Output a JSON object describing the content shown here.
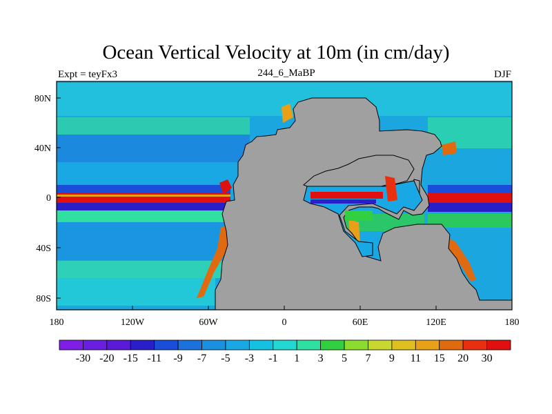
{
  "title": "Ocean Vertical Velocity at 10m (in cm/day)",
  "left_label": "Expt = teyFx3",
  "center_label": "244_6_MaBP",
  "right_label": "DJF",
  "x_ticks": [
    "180",
    "120W",
    "60W",
    "0",
    "60E",
    "120E",
    "180"
  ],
  "y_ticks": [
    "80N",
    "40N",
    "0",
    "40S",
    "80S"
  ],
  "colors": {
    "land": "#a0a0a0",
    "background_ocean": "#1ca6e0"
  },
  "colorbar": {
    "colors": [
      "#7f1fe6",
      "#6a1ee0",
      "#5a1ad8",
      "#2a1ec8",
      "#1a4ed8",
      "#1b72dc",
      "#1a90e0",
      "#1aa8e4",
      "#16c0e0",
      "#22d8d0",
      "#30e0a0",
      "#30d040",
      "#8cdc30",
      "#c8d830",
      "#e0c020",
      "#e8a018",
      "#e06a10",
      "#e83010",
      "#e01010"
    ],
    "labels": [
      "-30",
      "-20",
      "-15",
      "-11",
      "-9",
      "-7",
      "-5",
      "-3",
      "-1",
      "1",
      "3",
      "5",
      "7",
      "9",
      "11",
      "15",
      "20",
      "30"
    ]
  }
}
